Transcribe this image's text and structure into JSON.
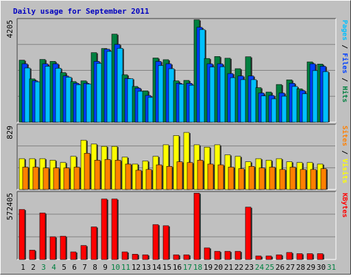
{
  "colors": {
    "background": "#c0c0c0",
    "frame_dark": "#404040",
    "frame_light": "#ffffff",
    "grid": "#808080",
    "title": "#0000c0",
    "hits": "#008040",
    "files": "#0040ff",
    "pages": "#00c0ff",
    "visits": "#ffff00",
    "sites": "#ff8000",
    "kbytes": "#ff0000",
    "weekday_label": "#000000",
    "weekend_label": "#008040"
  },
  "chart_data": [
    {
      "type": "bar",
      "title": "Daily usage for September 2011",
      "categories": [
        "1",
        "2",
        "3",
        "4",
        "5",
        "6",
        "7",
        "8",
        "9",
        "10",
        "11",
        "12",
        "13",
        "14",
        "15",
        "16",
        "17",
        "18",
        "19",
        "20",
        "21",
        "22",
        "23",
        "24",
        "25",
        "26",
        "27",
        "28",
        "29",
        "30",
        "31"
      ],
      "weekend_categories": [
        "3",
        "4",
        "10",
        "11",
        "17",
        "18",
        "24",
        "25",
        "31"
      ],
      "ymax_label": "4205",
      "ylim": [
        0,
        4205
      ],
      "grid": true,
      "right_label_parts": [
        {
          "text": "Pages",
          "color": "#00c0ff"
        },
        {
          "text": " / ",
          "color": "#000000"
        },
        {
          "text": "Files",
          "color": "#0040ff"
        },
        {
          "text": " / ",
          "color": "#000000"
        },
        {
          "text": "Hits",
          "color": "#008040"
        }
      ],
      "series": [
        {
          "name": "Hits",
          "color": "#008040",
          "values": [
            2550,
            1780,
            2580,
            2500,
            2040,
            1670,
            1700,
            2860,
            3030,
            3620,
            1950,
            1470,
            1290,
            2640,
            2570,
            1700,
            1720,
            4210,
            2620,
            2700,
            2630,
            2200,
            2690,
            1420,
            1240,
            1550,
            1740,
            1370,
            2480,
            2390,
            0
          ]
        },
        {
          "name": "Files",
          "color": "#0040ff",
          "values": [
            2400,
            1700,
            2400,
            2400,
            1900,
            1600,
            1600,
            2500,
            3000,
            3200,
            1800,
            1400,
            1100,
            2500,
            2400,
            1600,
            1600,
            3900,
            2400,
            2400,
            2000,
            1900,
            1900,
            1200,
            1100,
            1200,
            1600,
            1300,
            2400,
            2300,
            0
          ]
        },
        {
          "name": "Pages",
          "color": "#00c0ff",
          "values": [
            2230,
            1660,
            2300,
            2220,
            1850,
            1540,
            1570,
            2420,
            2910,
            3040,
            1790,
            1270,
            1020,
            2330,
            2200,
            1560,
            1520,
            3810,
            2270,
            2280,
            1830,
            1750,
            1750,
            1080,
            960,
            1070,
            1470,
            1170,
            2120,
            2080,
            0
          ]
        }
      ]
    },
    {
      "type": "bar",
      "ymax_label": "829",
      "ylim": [
        0,
        829
      ],
      "grid": true,
      "right_label_parts": [
        {
          "text": "Sites",
          "color": "#ff8000"
        },
        {
          "text": " / ",
          "color": "#000000"
        },
        {
          "text": "Visits",
          "color": "#ffff00"
        }
      ],
      "series": [
        {
          "name": "Visits",
          "color": "#ffff00",
          "values": [
            400,
            400,
            400,
            380,
            350,
            430,
            640,
            590,
            560,
            560,
            420,
            330,
            370,
            430,
            580,
            700,
            740,
            580,
            550,
            580,
            450,
            430,
            360,
            400,
            380,
            400,
            360,
            350,
            350,
            330,
            0
          ]
        },
        {
          "name": "Sites",
          "color": "#ff8000",
          "values": [
            290,
            290,
            280,
            280,
            280,
            290,
            470,
            380,
            390,
            380,
            330,
            250,
            260,
            320,
            300,
            360,
            350,
            380,
            330,
            320,
            290,
            270,
            300,
            280,
            290,
            260,
            290,
            260,
            260,
            270,
            0
          ]
        }
      ]
    },
    {
      "type": "bar",
      "ymax_label": "572405",
      "ylim": [
        0,
        572405
      ],
      "grid": true,
      "right_label_parts": [
        {
          "text": "KBytes",
          "color": "#ff0000"
        }
      ],
      "series": [
        {
          "name": "KBytes",
          "color": "#ff0000",
          "values": [
            430000,
            80000,
            400000,
            195000,
            200000,
            65000,
            120000,
            280000,
            520000,
            520000,
            65000,
            45000,
            40000,
            300000,
            290000,
            40000,
            40000,
            570000,
            100000,
            70000,
            70000,
            70000,
            450000,
            30000,
            30000,
            40000,
            60000,
            50000,
            50000,
            50000,
            0
          ]
        }
      ]
    }
  ]
}
